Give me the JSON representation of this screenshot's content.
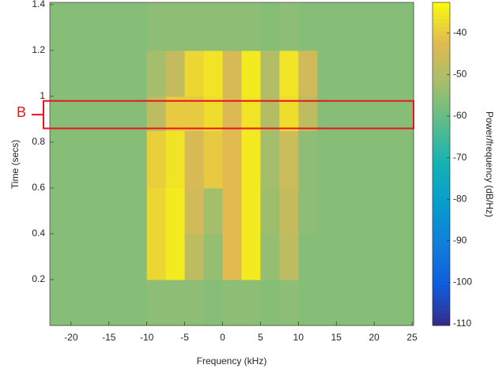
{
  "chart_data": {
    "type": "heatmap",
    "xlabel": "Frequency (kHz)",
    "ylabel": "Time (secs)",
    "colorbar_label": "Power/frequency (dB/Hz)",
    "x_edges": [
      -22.8,
      -10,
      -7.5,
      -5,
      -2.5,
      0,
      2.5,
      5,
      7.5,
      10,
      12.5,
      25.2
    ],
    "y_edges": [
      0,
      0.2,
      0.4,
      0.6,
      0.85,
      1.0,
      1.2,
      1.41
    ],
    "z": [
      [
        -56,
        -55,
        -55,
        -55,
        -56,
        -55,
        -55,
        -56,
        -55,
        -56,
        -56
      ],
      [
        -56,
        -38,
        -35,
        -48,
        -54,
        -42,
        -35,
        -54,
        -48,
        -56,
        -56
      ],
      [
        -56,
        -38,
        -35,
        -45,
        -52,
        -42,
        -35,
        -53,
        -47,
        -55,
        -56
      ],
      [
        -56,
        -39,
        -36,
        -44,
        -40,
        -42,
        -35,
        -52,
        -46,
        -55,
        -56
      ],
      [
        -56,
        -48,
        -40,
        -40,
        -37,
        -43,
        -36,
        -50,
        -37,
        -48,
        -56
      ],
      [
        -56,
        -52,
        -47,
        -38,
        -36,
        -44,
        -35,
        -50,
        -36,
        -45,
        -56
      ],
      [
        -56,
        -55,
        -55,
        -55,
        -55,
        -55,
        -55,
        -56,
        -55,
        -56,
        -56
      ]
    ],
    "xlim": [
      -22.8,
      25.2
    ],
    "xticks": [
      -20,
      -15,
      -10,
      -5,
      0,
      5,
      10,
      15,
      20,
      25
    ],
    "ylim": [
      0,
      1.41
    ],
    "yticks": [
      0.2,
      0.4,
      0.6,
      0.8,
      1,
      1.2,
      1.4
    ],
    "zlim": [
      -110.4,
      -32.6
    ],
    "zticks": [
      -110,
      -100,
      -90,
      -80,
      -70,
      -60,
      -50,
      -40
    ],
    "colormap": "parula",
    "annotations": [
      {
        "text": "B",
        "y_range": [
          0.86,
          0.98
        ],
        "color": "#e8141b"
      }
    ]
  }
}
